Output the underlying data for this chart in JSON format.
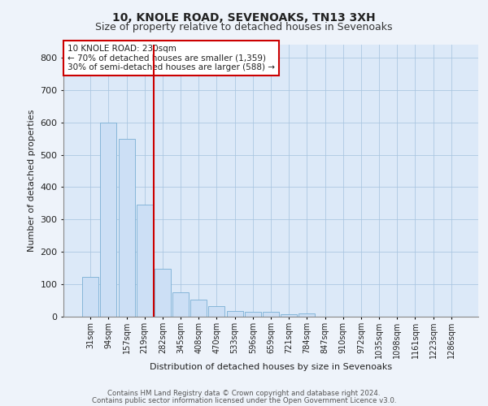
{
  "title1": "10, KNOLE ROAD, SEVENOAKS, TN13 3XH",
  "title2": "Size of property relative to detached houses in Sevenoaks",
  "xlabel": "Distribution of detached houses by size in Sevenoaks",
  "ylabel": "Number of detached properties",
  "bar_labels": [
    "31sqm",
    "94sqm",
    "157sqm",
    "219sqm",
    "282sqm",
    "345sqm",
    "408sqm",
    "470sqm",
    "533sqm",
    "596sqm",
    "659sqm",
    "721sqm",
    "784sqm",
    "847sqm",
    "910sqm",
    "972sqm",
    "1035sqm",
    "1098sqm",
    "1161sqm",
    "1223sqm",
    "1286sqm"
  ],
  "bar_values": [
    122,
    600,
    550,
    345,
    148,
    75,
    53,
    33,
    18,
    14,
    14,
    7,
    10,
    0,
    0,
    0,
    0,
    0,
    0,
    0,
    0
  ],
  "bar_color": "#ccdff5",
  "bar_edgecolor": "#7aafd4",
  "vline_x": 3.5,
  "vline_color": "#cc0000",
  "annotation_text": "10 KNOLE ROAD: 230sqm\n← 70% of detached houses are smaller (1,359)\n30% of semi-detached houses are larger (588) →",
  "annotation_box_facecolor": "#ffffff",
  "annotation_box_edgecolor": "#cc0000",
  "ylim": [
    0,
    840
  ],
  "yticks": [
    0,
    100,
    200,
    300,
    400,
    500,
    600,
    700,
    800
  ],
  "footer1": "Contains HM Land Registry data © Crown copyright and database right 2024.",
  "footer2": "Contains public sector information licensed under the Open Government Licence v3.0.",
  "fig_bg_color": "#eef3fa",
  "plot_bg_color": "#dce9f8"
}
